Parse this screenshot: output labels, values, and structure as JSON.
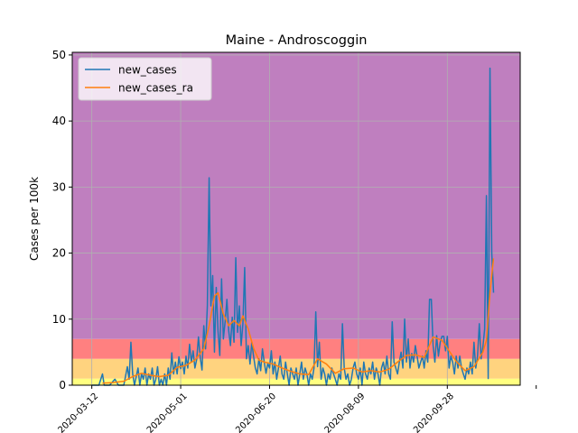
{
  "chart_data": {
    "type": "line",
    "title": "Maine - Androscoggin",
    "xlabel": "",
    "ylabel": "Cases per 100k",
    "xlim": [
      "2020-03-01",
      "2020-11-08"
    ],
    "ylim": [
      0,
      50.4
    ],
    "x_ticks": [
      "2020-03-12",
      "2020-05-01",
      "2020-06-20",
      "2020-08-09",
      "2020-09-28",
      "2020-11-17"
    ],
    "x_tick_labels": [
      "2020-03-12",
      "2020-05-01",
      "2020-06-20",
      "2020-08-09",
      "2020-09-28",
      ""
    ],
    "y_ticks": [
      0,
      10,
      20,
      30,
      40,
      50
    ],
    "y_tick_labels": [
      "0",
      "10",
      "20",
      "30",
      "40",
      "50"
    ],
    "grid": true,
    "legend_placement": "upper-left",
    "risk_bands": [
      {
        "from": 0,
        "to": 1,
        "color": "#ffff80"
      },
      {
        "from": 1,
        "to": 4,
        "color": "#ffd37f"
      },
      {
        "from": 4,
        "to": 7,
        "color": "#ff8080"
      },
      {
        "from": 7,
        "to": 50.4,
        "color": "#bf7fbf"
      }
    ],
    "series": [
      {
        "name": "new_cases",
        "color": "#1f77b4",
        "points": [
          [
            "2020-03-12",
            0
          ],
          [
            "2020-03-16",
            0
          ],
          [
            "2020-03-18",
            1.7
          ],
          [
            "2020-03-19",
            0
          ],
          [
            "2020-03-22",
            0
          ],
          [
            "2020-03-25",
            0.9
          ],
          [
            "2020-03-27",
            0
          ],
          [
            "2020-03-30",
            0
          ],
          [
            "2020-04-01",
            2.8
          ],
          [
            "2020-04-02",
            0.9
          ],
          [
            "2020-04-03",
            6.5
          ],
          [
            "2020-04-04",
            1.7
          ],
          [
            "2020-04-05",
            0
          ],
          [
            "2020-04-07",
            2.6
          ],
          [
            "2020-04-08",
            0
          ],
          [
            "2020-04-09",
            1.7
          ],
          [
            "2020-04-10",
            0.9
          ],
          [
            "2020-04-11",
            2.6
          ],
          [
            "2020-04-12",
            0
          ],
          [
            "2020-04-13",
            1.7
          ],
          [
            "2020-04-14",
            0.9
          ],
          [
            "2020-04-15",
            2.6
          ],
          [
            "2020-04-16",
            0
          ],
          [
            "2020-04-17",
            0.9
          ],
          [
            "2020-04-18",
            2.8
          ],
          [
            "2020-04-19",
            0
          ],
          [
            "2020-04-20",
            0.9
          ],
          [
            "2020-04-21",
            0
          ],
          [
            "2020-04-22",
            1.7
          ],
          [
            "2020-04-23",
            0
          ],
          [
            "2020-04-24",
            2.6
          ],
          [
            "2020-04-25",
            0.9
          ],
          [
            "2020-04-26",
            4.9
          ],
          [
            "2020-04-27",
            1.7
          ],
          [
            "2020-04-28",
            3.5
          ],
          [
            "2020-04-29",
            1.7
          ],
          [
            "2020-04-30",
            4.3
          ],
          [
            "2020-05-01",
            2.5
          ],
          [
            "2020-05-02",
            3.5
          ],
          [
            "2020-05-03",
            1.7
          ],
          [
            "2020-05-04",
            4.4
          ],
          [
            "2020-05-05",
            2.6
          ],
          [
            "2020-05-06",
            6.2
          ],
          [
            "2020-05-07",
            3.5
          ],
          [
            "2020-05-08",
            5.2
          ],
          [
            "2020-05-09",
            2.6
          ],
          [
            "2020-05-10",
            3.9
          ],
          [
            "2020-05-11",
            7.3
          ],
          [
            "2020-05-12",
            4.2
          ],
          [
            "2020-05-13",
            2.3
          ],
          [
            "2020-05-14",
            9.0
          ],
          [
            "2020-05-15",
            5.5
          ],
          [
            "2020-05-16",
            12.0
          ],
          [
            "2020-05-17",
            31.4
          ],
          [
            "2020-05-18",
            12.0
          ],
          [
            "2020-05-19",
            16.6
          ],
          [
            "2020-05-20",
            5.0
          ],
          [
            "2020-05-21",
            14.8
          ],
          [
            "2020-05-22",
            8.2
          ],
          [
            "2020-05-23",
            4.5
          ],
          [
            "2020-05-24",
            16.1
          ],
          [
            "2020-05-25",
            7.0
          ],
          [
            "2020-05-26",
            9.6
          ],
          [
            "2020-05-27",
            13.0
          ],
          [
            "2020-05-28",
            8.3
          ],
          [
            "2020-05-29",
            6.0
          ],
          [
            "2020-05-30",
            10.3
          ],
          [
            "2020-05-31",
            6.5
          ],
          [
            "2020-06-01",
            19.3
          ],
          [
            "2020-06-02",
            8.0
          ],
          [
            "2020-06-03",
            12.0
          ],
          [
            "2020-06-04",
            6.0
          ],
          [
            "2020-06-05",
            9.3
          ],
          [
            "2020-06-06",
            17.8
          ],
          [
            "2020-06-07",
            4.0
          ],
          [
            "2020-06-08",
            6.0
          ],
          [
            "2020-06-09",
            3.2
          ],
          [
            "2020-06-10",
            6.5
          ],
          [
            "2020-06-11",
            4.4
          ],
          [
            "2020-06-12",
            2.6
          ],
          [
            "2020-06-13",
            1.7
          ],
          [
            "2020-06-14",
            4.0
          ],
          [
            "2020-06-15",
            2.2
          ],
          [
            "2020-06-16",
            5.5
          ],
          [
            "2020-06-17",
            3.5
          ],
          [
            "2020-06-18",
            1.8
          ],
          [
            "2020-06-19",
            3.3
          ],
          [
            "2020-06-20",
            2.6
          ],
          [
            "2020-06-21",
            5.2
          ],
          [
            "2020-06-22",
            1.7
          ],
          [
            "2020-06-23",
            3.5
          ],
          [
            "2020-06-24",
            0.9
          ],
          [
            "2020-06-25",
            2.6
          ],
          [
            "2020-06-26",
            4.4
          ],
          [
            "2020-06-27",
            1.7
          ],
          [
            "2020-06-28",
            0.9
          ],
          [
            "2020-06-29",
            3.5
          ],
          [
            "2020-06-30",
            1.7
          ],
          [
            "2020-07-01",
            0
          ],
          [
            "2020-07-02",
            2.6
          ],
          [
            "2020-07-03",
            1.7
          ],
          [
            "2020-07-04",
            0.9
          ],
          [
            "2020-07-05",
            2.6
          ],
          [
            "2020-07-06",
            0
          ],
          [
            "2020-07-07",
            1.7
          ],
          [
            "2020-07-08",
            3.5
          ],
          [
            "2020-07-09",
            0.9
          ],
          [
            "2020-07-10",
            2.6
          ],
          [
            "2020-07-11",
            1.7
          ],
          [
            "2020-07-12",
            0
          ],
          [
            "2020-07-13",
            1.7
          ],
          [
            "2020-07-14",
            0.9
          ],
          [
            "2020-07-15",
            2.6
          ],
          [
            "2020-07-16",
            11.1
          ],
          [
            "2020-07-17",
            2.8
          ],
          [
            "2020-07-18",
            6.5
          ],
          [
            "2020-07-19",
            0.9
          ],
          [
            "2020-07-20",
            2.6
          ],
          [
            "2020-07-21",
            1.7
          ],
          [
            "2020-07-22",
            0
          ],
          [
            "2020-07-23",
            1.7
          ],
          [
            "2020-07-24",
            0.9
          ],
          [
            "2020-07-25",
            2.6
          ],
          [
            "2020-07-26",
            1.7
          ],
          [
            "2020-07-27",
            0.9
          ],
          [
            "2020-07-28",
            0
          ],
          [
            "2020-07-29",
            1.7
          ],
          [
            "2020-07-30",
            0.9
          ],
          [
            "2020-07-31",
            9.3
          ],
          [
            "2020-08-01",
            2.6
          ],
          [
            "2020-08-02",
            0.9
          ],
          [
            "2020-08-03",
            1.7
          ],
          [
            "2020-08-04",
            0
          ],
          [
            "2020-08-05",
            0.9
          ],
          [
            "2020-08-06",
            2.6
          ],
          [
            "2020-08-07",
            3.5
          ],
          [
            "2020-08-08",
            1.7
          ],
          [
            "2020-08-09",
            0.9
          ],
          [
            "2020-08-10",
            2.6
          ],
          [
            "2020-08-11",
            0
          ],
          [
            "2020-08-12",
            3.5
          ],
          [
            "2020-08-13",
            1.7
          ],
          [
            "2020-08-14",
            0.9
          ],
          [
            "2020-08-15",
            2.6
          ],
          [
            "2020-08-16",
            1.7
          ],
          [
            "2020-08-17",
            3.5
          ],
          [
            "2020-08-18",
            0.9
          ],
          [
            "2020-08-19",
            2.6
          ],
          [
            "2020-08-20",
            1.7
          ],
          [
            "2020-08-21",
            0
          ],
          [
            "2020-08-22",
            2.6
          ],
          [
            "2020-08-23",
            3.5
          ],
          [
            "2020-08-24",
            1.7
          ],
          [
            "2020-08-25",
            4.4
          ],
          [
            "2020-08-26",
            1.7
          ],
          [
            "2020-08-27",
            0.9
          ],
          [
            "2020-08-28",
            9.6
          ],
          [
            "2020-08-29",
            3.5
          ],
          [
            "2020-08-30",
            2.6
          ],
          [
            "2020-08-31",
            1.7
          ],
          [
            "2020-09-01",
            3.5
          ],
          [
            "2020-09-02",
            5.0
          ],
          [
            "2020-09-03",
            2.6
          ],
          [
            "2020-09-04",
            10.0
          ],
          [
            "2020-09-05",
            3.5
          ],
          [
            "2020-09-06",
            7.0
          ],
          [
            "2020-09-07",
            2.6
          ],
          [
            "2020-09-08",
            4.8
          ],
          [
            "2020-09-09",
            3.5
          ],
          [
            "2020-09-10",
            6.0
          ],
          [
            "2020-09-11",
            4.4
          ],
          [
            "2020-09-12",
            2.6
          ],
          [
            "2020-09-13",
            3.5
          ],
          [
            "2020-09-14",
            4.4
          ],
          [
            "2020-09-15",
            2.6
          ],
          [
            "2020-09-16",
            5.2
          ],
          [
            "2020-09-17",
            3.5
          ],
          [
            "2020-09-18",
            13.0
          ],
          [
            "2020-09-19",
            13.0
          ],
          [
            "2020-09-20",
            6.0
          ],
          [
            "2020-09-21",
            3.5
          ],
          [
            "2020-09-22",
            7.5
          ],
          [
            "2020-09-23",
            4.4
          ],
          [
            "2020-09-24",
            6.5
          ],
          [
            "2020-09-25",
            7.4
          ],
          [
            "2020-09-26",
            7.4
          ],
          [
            "2020-09-27",
            5.2
          ],
          [
            "2020-09-28",
            7.4
          ],
          [
            "2020-09-29",
            2.6
          ],
          [
            "2020-09-30",
            4.4
          ],
          [
            "2020-10-01",
            3.5
          ],
          [
            "2020-10-02",
            1.7
          ],
          [
            "2020-10-03",
            4.4
          ],
          [
            "2020-10-04",
            2.6
          ],
          [
            "2020-10-05",
            4.4
          ],
          [
            "2020-10-06",
            2.6
          ],
          [
            "2020-10-07",
            1.7
          ],
          [
            "2020-10-08",
            0.9
          ],
          [
            "2020-10-09",
            2.6
          ],
          [
            "2020-10-10",
            1.7
          ],
          [
            "2020-10-11",
            3.5
          ],
          [
            "2020-10-12",
            1.7
          ],
          [
            "2020-10-13",
            6.5
          ],
          [
            "2020-10-14",
            2.6
          ],
          [
            "2020-10-15",
            4.4
          ],
          [
            "2020-10-16",
            9.3
          ],
          [
            "2020-10-17",
            4.0
          ],
          [
            "2020-10-18",
            5.8
          ],
          [
            "2020-10-19",
            8.5
          ],
          [
            "2020-10-20",
            28.7
          ],
          [
            "2020-10-21",
            1.0
          ],
          [
            "2020-10-22",
            48.0
          ],
          [
            "2020-10-23",
            20.0
          ],
          [
            "2020-10-24",
            14.0
          ]
        ]
      },
      {
        "name": "new_cases_ra",
        "color": "#ff7f0e",
        "points": [
          [
            "2020-03-18",
            0.3
          ],
          [
            "2020-03-24",
            0.4
          ],
          [
            "2020-03-30",
            0.6
          ],
          [
            "2020-04-04",
            1.3
          ],
          [
            "2020-04-09",
            1.8
          ],
          [
            "2020-04-14",
            1.5
          ],
          [
            "2020-04-19",
            1.3
          ],
          [
            "2020-04-24",
            1.5
          ],
          [
            "2020-04-29",
            2.7
          ],
          [
            "2020-05-04",
            3.0
          ],
          [
            "2020-05-09",
            3.8
          ],
          [
            "2020-05-14",
            5.5
          ],
          [
            "2020-05-17",
            9.0
          ],
          [
            "2020-05-20",
            13.5
          ],
          [
            "2020-05-22",
            14.0
          ],
          [
            "2020-05-25",
            10.8
          ],
          [
            "2020-05-28",
            9.0
          ],
          [
            "2020-05-31",
            9.8
          ],
          [
            "2020-06-03",
            9.0
          ],
          [
            "2020-06-05",
            10.5
          ],
          [
            "2020-06-08",
            8.5
          ],
          [
            "2020-06-11",
            5.6
          ],
          [
            "2020-06-14",
            3.8
          ],
          [
            "2020-06-17",
            3.5
          ],
          [
            "2020-06-22",
            3.2
          ],
          [
            "2020-06-27",
            2.6
          ],
          [
            "2020-07-02",
            2.1
          ],
          [
            "2020-07-07",
            1.7
          ],
          [
            "2020-07-12",
            1.6
          ],
          [
            "2020-07-17",
            4.0
          ],
          [
            "2020-07-22",
            3.2
          ],
          [
            "2020-07-27",
            1.8
          ],
          [
            "2020-08-01",
            2.5
          ],
          [
            "2020-08-06",
            2.6
          ],
          [
            "2020-08-11",
            2.0
          ],
          [
            "2020-08-16",
            2.2
          ],
          [
            "2020-08-21",
            2.0
          ],
          [
            "2020-08-26",
            2.4
          ],
          [
            "2020-08-31",
            3.5
          ],
          [
            "2020-09-05",
            4.5
          ],
          [
            "2020-09-10",
            4.6
          ],
          [
            "2020-09-15",
            4.2
          ],
          [
            "2020-09-20",
            7.3
          ],
          [
            "2020-09-25",
            6.8
          ],
          [
            "2020-09-28",
            5.6
          ],
          [
            "2020-10-03",
            3.6
          ],
          [
            "2020-10-08",
            2.2
          ],
          [
            "2020-10-13",
            2.8
          ],
          [
            "2020-10-18",
            5.0
          ],
          [
            "2020-10-20",
            6.8
          ],
          [
            "2020-10-22",
            14.0
          ],
          [
            "2020-10-24",
            19.2
          ]
        ]
      }
    ]
  }
}
